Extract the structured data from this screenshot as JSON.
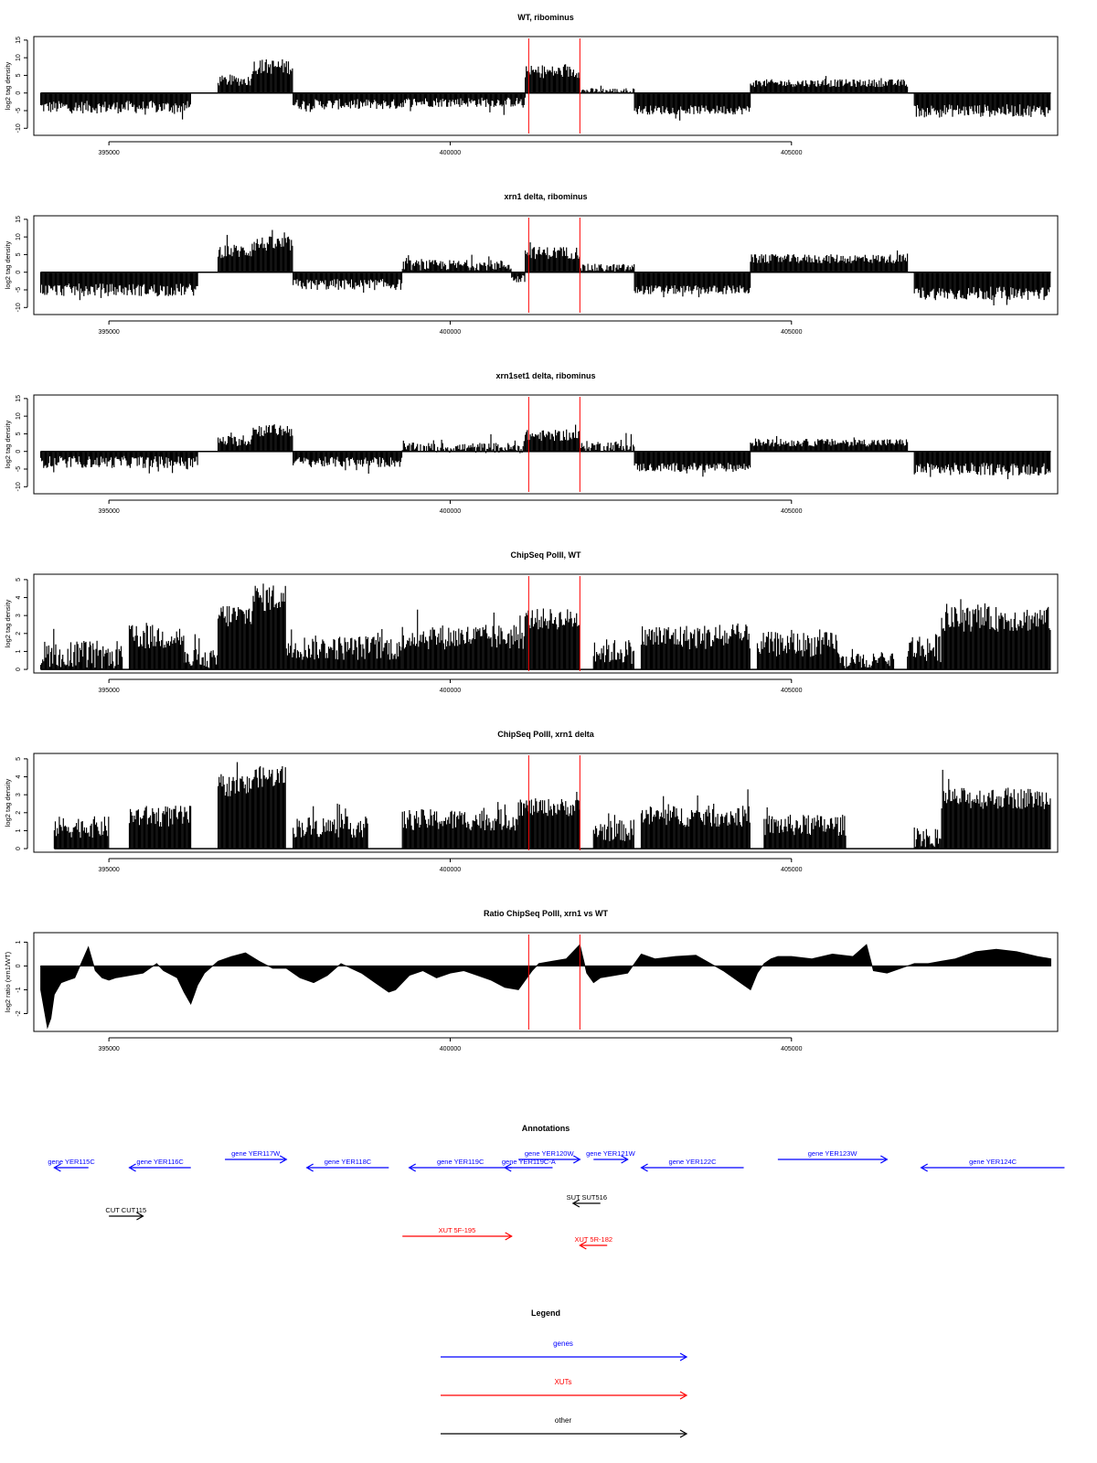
{
  "colors": {
    "axis": "#000000",
    "marker": "#ff0000",
    "gene": "#0000ff",
    "xut": "#ff0000",
    "other": "#000000",
    "bars": "#000000"
  },
  "chart_data": [
    {
      "type": "bar",
      "title": "WT, ribominus",
      "ylabel": "log2 tag density",
      "xlim": [
        393900,
        408900
      ],
      "ylim": [
        -12,
        16
      ],
      "yticks": [
        -10,
        -5,
        0,
        5,
        10,
        15
      ],
      "xticks": [
        395000,
        400000,
        405000
      ],
      "xtick_labels": [
        "395000",
        "400000",
        "405000"
      ],
      "markers": [
        401150,
        401900
      ],
      "segments": [
        {
          "x": [
            394000,
            396200
          ],
          "v": -4,
          "s": 1.8
        },
        {
          "x": [
            396600,
            397100
          ],
          "v": 3.5,
          "s": 1.5
        },
        {
          "x": [
            397100,
            397700
          ],
          "v": 7.5,
          "s": 2.2
        },
        {
          "x": [
            397700,
            399300
          ],
          "v": -3.2,
          "s": 1.5
        },
        {
          "x": [
            399300,
            401100
          ],
          "v": -2.6,
          "s": 1.4
        },
        {
          "x": [
            401100,
            401900
          ],
          "v": 6,
          "s": 1.8
        },
        {
          "x": [
            401900,
            402700
          ],
          "v": 0.6,
          "s": 0.8
        },
        {
          "x": [
            402700,
            404400
          ],
          "v": -4.8,
          "s": 1.3
        },
        {
          "x": [
            404400,
            406700
          ],
          "v": 2.8,
          "s": 1.1
        },
        {
          "x": [
            406800,
            408800
          ],
          "v": -5,
          "s": 1.8
        }
      ]
    },
    {
      "type": "bar",
      "title": "xrn1 delta, ribominus",
      "ylabel": "log2 tag density",
      "xlim": [
        393900,
        408900
      ],
      "ylim": [
        -12,
        16
      ],
      "yticks": [
        -10,
        -5,
        0,
        5,
        10,
        15
      ],
      "xticks": [
        395000,
        400000,
        405000
      ],
      "xtick_labels": [
        "395000",
        "400000",
        "405000"
      ],
      "markers": [
        401150,
        401900
      ],
      "segments": [
        {
          "x": [
            394000,
            396300
          ],
          "v": -5,
          "s": 1.8
        },
        {
          "x": [
            396600,
            397100
          ],
          "v": 6,
          "s": 2
        },
        {
          "x": [
            397100,
            397700
          ],
          "v": 8,
          "s": 2.2
        },
        {
          "x": [
            397700,
            399300
          ],
          "v": -3.5,
          "s": 1.6
        },
        {
          "x": [
            399300,
            400900
          ],
          "v": 2,
          "s": 1.5
        },
        {
          "x": [
            400900,
            401100
          ],
          "v": -2,
          "s": 1.2
        },
        {
          "x": [
            401100,
            401900
          ],
          "v": 5.5,
          "s": 1.8
        },
        {
          "x": [
            401900,
            402700
          ],
          "v": 1.2,
          "s": 1.2
        },
        {
          "x": [
            402700,
            404400
          ],
          "v": -5,
          "s": 1.3
        },
        {
          "x": [
            404400,
            406700
          ],
          "v": 3.8,
          "s": 1.3
        },
        {
          "x": [
            406800,
            408800
          ],
          "v": -6,
          "s": 1.9
        }
      ]
    },
    {
      "type": "bar",
      "title": "xrn1set1 delta, ribominus",
      "ylabel": "log2 tag density",
      "xlim": [
        393900,
        408900
      ],
      "ylim": [
        -12,
        16
      ],
      "yticks": [
        -10,
        -5,
        0,
        5,
        10,
        15
      ],
      "xticks": [
        395000,
        400000,
        405000
      ],
      "xtick_labels": [
        "395000",
        "400000",
        "405000"
      ],
      "markers": [
        401150,
        401900
      ],
      "segments": [
        {
          "x": [
            394000,
            396300
          ],
          "v": -3,
          "s": 1.7
        },
        {
          "x": [
            396600,
            397100
          ],
          "v": 3,
          "s": 1.5
        },
        {
          "x": [
            397100,
            397700
          ],
          "v": 6,
          "s": 1.8
        },
        {
          "x": [
            397700,
            399300
          ],
          "v": -3,
          "s": 1.5
        },
        {
          "x": [
            399300,
            401100
          ],
          "v": 1,
          "s": 1.5
        },
        {
          "x": [
            401100,
            401900
          ],
          "v": 4.5,
          "s": 1.6
        },
        {
          "x": [
            401900,
            402700
          ],
          "v": 1.5,
          "s": 1.5
        },
        {
          "x": [
            402700,
            404400
          ],
          "v": -4.5,
          "s": 1.3
        },
        {
          "x": [
            404400,
            406700
          ],
          "v": 2.5,
          "s": 1.1
        },
        {
          "x": [
            406800,
            408800
          ],
          "v": -5,
          "s": 1.8
        }
      ]
    },
    {
      "type": "bar",
      "title": "ChipSeq PolII, WT",
      "ylabel": "log2 tag density",
      "xlim": [
        393900,
        408900
      ],
      "ylim": [
        -0.2,
        5.3
      ],
      "yticks": [
        0,
        1,
        2,
        3,
        4,
        5
      ],
      "xticks": [
        395000,
        400000,
        405000
      ],
      "xtick_labels": [
        "395000",
        "400000",
        "405000"
      ],
      "markers": [
        401150,
        401900
      ],
      "segments": [
        {
          "x": [
            394000,
            395200
          ],
          "v": 0.8,
          "s": 0.8
        },
        {
          "x": [
            395300,
            396100
          ],
          "v": 1.8,
          "s": 0.7
        },
        {
          "x": [
            396100,
            396600
          ],
          "v": 0.5,
          "s": 0.6
        },
        {
          "x": [
            396600,
            397100
          ],
          "v": 3,
          "s": 0.7
        },
        {
          "x": [
            397100,
            397600
          ],
          "v": 4,
          "s": 0.8
        },
        {
          "x": [
            397600,
            399300
          ],
          "v": 1.2,
          "s": 0.7
        },
        {
          "x": [
            399300,
            401100
          ],
          "v": 1.8,
          "s": 0.7
        },
        {
          "x": [
            401100,
            401900
          ],
          "v": 2.8,
          "s": 0.6
        },
        {
          "x": [
            402100,
            402700
          ],
          "v": 1,
          "s": 0.7
        },
        {
          "x": [
            402800,
            404400
          ],
          "v": 1.8,
          "s": 0.7
        },
        {
          "x": [
            404500,
            405700
          ],
          "v": 1.4,
          "s": 0.7
        },
        {
          "x": [
            405700,
            406500
          ],
          "v": 0.4,
          "s": 0.5
        },
        {
          "x": [
            406700,
            407200
          ],
          "v": 1.2,
          "s": 0.8
        },
        {
          "x": [
            407200,
            408800
          ],
          "v": 2.8,
          "s": 0.7
        }
      ]
    },
    {
      "type": "bar",
      "title": "ChipSeq PolII, xrn1 delta",
      "ylabel": "log2 tag density",
      "xlim": [
        393900,
        408900
      ],
      "ylim": [
        -0.2,
        5.3
      ],
      "yticks": [
        0,
        1,
        2,
        3,
        4,
        5
      ],
      "xticks": [
        395000,
        400000,
        405000
      ],
      "xtick_labels": [
        "395000",
        "400000",
        "405000"
      ],
      "markers": [
        401150,
        401900
      ],
      "segments": [
        {
          "x": [
            394200,
            395000
          ],
          "v": 1.2,
          "s": 0.6
        },
        {
          "x": [
            395300,
            396200
          ],
          "v": 1.8,
          "s": 0.6
        },
        {
          "x": [
            396600,
            397100
          ],
          "v": 3.5,
          "s": 0.6
        },
        {
          "x": [
            397100,
            397600
          ],
          "v": 4,
          "s": 0.6
        },
        {
          "x": [
            397700,
            398800
          ],
          "v": 1.2,
          "s": 0.6
        },
        {
          "x": [
            399300,
            401000
          ],
          "v": 1.6,
          "s": 0.6
        },
        {
          "x": [
            401000,
            401900
          ],
          "v": 2.3,
          "s": 0.5
        },
        {
          "x": [
            402100,
            402700
          ],
          "v": 1,
          "s": 0.6
        },
        {
          "x": [
            402800,
            404400
          ],
          "v": 1.8,
          "s": 0.6
        },
        {
          "x": [
            404600,
            405800
          ],
          "v": 1.3,
          "s": 0.6
        },
        {
          "x": [
            406800,
            407200
          ],
          "v": 0.6,
          "s": 0.6
        },
        {
          "x": [
            407200,
            408800
          ],
          "v": 2.8,
          "s": 0.6
        }
      ]
    },
    {
      "type": "area",
      "title": "Ratio ChipSeq PolII, xrn1 vs WT",
      "ylabel": "log2 ratio (xrn1/WT)",
      "xlim": [
        393900,
        408900
      ],
      "ylim": [
        -2.75,
        1.4
      ],
      "yticks": [
        -2,
        -1,
        0,
        1
      ],
      "xticks": [
        395000,
        400000,
        405000
      ],
      "xtick_labels": [
        "395000",
        "400000",
        "405000"
      ],
      "markers": [
        401150,
        401900
      ],
      "x": [
        394000,
        394050,
        394100,
        394150,
        394200,
        394300,
        394400,
        394500,
        394700,
        394800,
        394900,
        395000,
        395100,
        395300,
        395500,
        395700,
        395800,
        396000,
        396100,
        396200,
        396250,
        396300,
        396400,
        396600,
        396800,
        397000,
        397200,
        397400,
        397600,
        397800,
        398000,
        398200,
        398400,
        398700,
        398900,
        399100,
        399200,
        399400,
        399600,
        399800,
        400000,
        400200,
        400400,
        400600,
        400800,
        401000,
        401100,
        401200,
        401300,
        401500,
        401700,
        401900,
        402000,
        402100,
        402200,
        402400,
        402600,
        402800,
        403000,
        403300,
        403600,
        404000,
        404300,
        404400,
        404500,
        404600,
        404700,
        404800,
        405000,
        405300,
        405600,
        405900,
        406100,
        406200,
        406400,
        406600,
        406800,
        407000,
        407200,
        407400,
        407700,
        408000,
        408300,
        408600,
        408800
      ],
      "y": [
        -1,
        -1.8,
        -2.6,
        -2.2,
        -1.2,
        -0.7,
        -0.6,
        -0.5,
        0.8,
        -0.2,
        -0.5,
        -0.6,
        -0.5,
        -0.4,
        -0.3,
        0.1,
        -0.2,
        -0.5,
        -1.1,
        -1.6,
        -1.2,
        -0.8,
        -0.3,
        0.2,
        0.4,
        0.55,
        0.2,
        -0.1,
        -0.1,
        -0.5,
        -0.7,
        -0.4,
        0.1,
        -0.3,
        -0.7,
        -1.1,
        -1.0,
        -0.4,
        -0.2,
        -0.5,
        -0.3,
        -0.2,
        -0.4,
        -0.6,
        -0.9,
        -1.0,
        -0.6,
        -0.2,
        0.1,
        0.2,
        0.3,
        0.9,
        -0.3,
        -0.7,
        -0.5,
        -0.4,
        -0.3,
        0.5,
        0.3,
        0.4,
        0.45,
        -0.2,
        -0.8,
        -1.0,
        -0.3,
        0.1,
        0.3,
        0.4,
        0.4,
        0.3,
        0.5,
        0.4,
        0.9,
        -0.2,
        -0.3,
        -0.1,
        0.1,
        0.1,
        0.2,
        0.3,
        0.6,
        0.7,
        0.6,
        0.4,
        0.3
      ]
    }
  ],
  "annotations": {
    "title": "Annotations",
    "genes": [
      {
        "label": "gene YER115C",
        "x1": 394200,
        "x2": 394700,
        "strand": "-",
        "row": 1
      },
      {
        "label": "gene YER116C",
        "x1": 395300,
        "x2": 396200,
        "strand": "-",
        "row": 1
      },
      {
        "label": "gene YER117W",
        "x1": 396700,
        "x2": 397600,
        "strand": "+",
        "row": 0
      },
      {
        "label": "gene YER118C",
        "x1": 397900,
        "x2": 399100,
        "strand": "-",
        "row": 1
      },
      {
        "label": "gene YER119C",
        "x1": 399400,
        "x2": 400900,
        "strand": "-",
        "row": 1
      },
      {
        "label": "gene YER119C-A",
        "x1": 400800,
        "x2": 401500,
        "strand": "-",
        "row": 1
      },
      {
        "label": "gene YER120W",
        "x1": 401000,
        "x2": 401900,
        "strand": "+",
        "row": 0
      },
      {
        "label": "gene YER121W",
        "x1": 402100,
        "x2": 402600,
        "strand": "+",
        "row": 0
      },
      {
        "label": "gene YER122C",
        "x1": 402800,
        "x2": 404300,
        "strand": "-",
        "row": 1
      },
      {
        "label": "gene YER123W",
        "x1": 404800,
        "x2": 406400,
        "strand": "+",
        "row": 0
      },
      {
        "label": "gene YER124C",
        "x1": 406900,
        "x2": 409000,
        "strand": "-",
        "row": 1
      }
    ],
    "other": [
      {
        "label": "CUT CUT115",
        "x1": 395000,
        "x2": 395500,
        "strand": "+"
      },
      {
        "label": "SUT SUT516",
        "x1": 401800,
        "x2": 402200,
        "strand": "-"
      }
    ],
    "xuts": [
      {
        "label": "XUT 5F-195",
        "x1": 399300,
        "x2": 400900,
        "strand": "+"
      },
      {
        "label": "XUT 5R-182",
        "x1": 401900,
        "x2": 402300,
        "strand": "-"
      }
    ]
  },
  "legend": {
    "title": "Legend",
    "items": [
      {
        "label": "genes",
        "color": "#0000ff"
      },
      {
        "label": "XUTs",
        "color": "#ff0000"
      },
      {
        "label": "other",
        "color": "#000000"
      }
    ]
  }
}
